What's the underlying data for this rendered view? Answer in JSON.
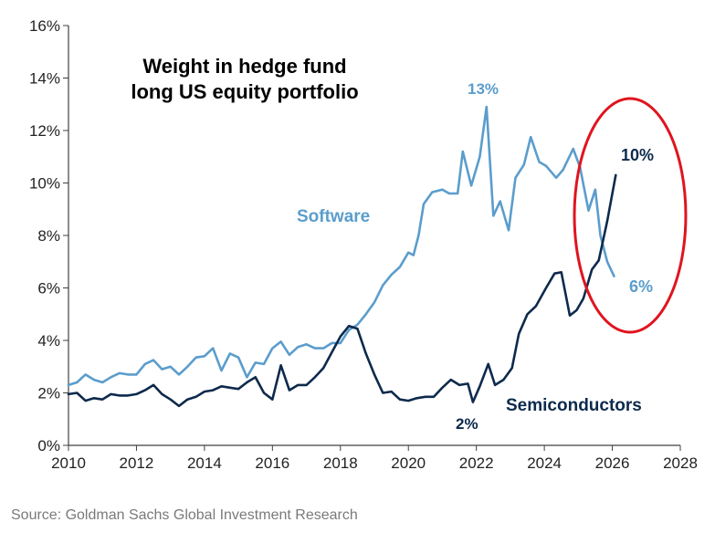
{
  "chart_data": {
    "type": "line",
    "title_lines": [
      "Weight in hedge fund",
      "long US equity portfolio"
    ],
    "xlim": [
      2010,
      2028
    ],
    "ylim": [
      0,
      16
    ],
    "x_ticks": [
      2010,
      2012,
      2014,
      2016,
      2018,
      2020,
      2022,
      2024,
      2026,
      2028
    ],
    "y_ticks": [
      0,
      2,
      4,
      6,
      8,
      10,
      12,
      14,
      16
    ],
    "y_tick_labels": [
      "0%",
      "2%",
      "4%",
      "6%",
      "8%",
      "10%",
      "12%",
      "14%",
      "16%"
    ],
    "grid": false,
    "colors": {
      "software": "#5b9dcc",
      "semiconductors": "#0d2a4c",
      "annotation_ellipse": "#e0141e",
      "axis": "#404040"
    },
    "series": [
      {
        "name": "Software",
        "key": "software",
        "points": [
          [
            2010.0,
            2.3
          ],
          [
            2010.25,
            2.4
          ],
          [
            2010.5,
            2.7
          ],
          [
            2010.75,
            2.5
          ],
          [
            2011.0,
            2.4
          ],
          [
            2011.25,
            2.6
          ],
          [
            2011.5,
            2.75
          ],
          [
            2011.75,
            2.7
          ],
          [
            2012.0,
            2.7
          ],
          [
            2012.25,
            3.1
          ],
          [
            2012.5,
            3.25
          ],
          [
            2012.75,
            2.9
          ],
          [
            2013.0,
            3.0
          ],
          [
            2013.25,
            2.7
          ],
          [
            2013.5,
            3.0
          ],
          [
            2013.75,
            3.35
          ],
          [
            2014.0,
            3.4
          ],
          [
            2014.25,
            3.7
          ],
          [
            2014.5,
            2.85
          ],
          [
            2014.75,
            3.5
          ],
          [
            2015.0,
            3.35
          ],
          [
            2015.25,
            2.6
          ],
          [
            2015.5,
            3.15
          ],
          [
            2015.75,
            3.1
          ],
          [
            2016.0,
            3.7
          ],
          [
            2016.25,
            3.95
          ],
          [
            2016.5,
            3.45
          ],
          [
            2016.75,
            3.75
          ],
          [
            2017.0,
            3.85
          ],
          [
            2017.25,
            3.7
          ],
          [
            2017.5,
            3.7
          ],
          [
            2017.75,
            3.9
          ],
          [
            2018.0,
            3.9
          ],
          [
            2018.25,
            4.4
          ],
          [
            2018.5,
            4.6
          ],
          [
            2018.75,
            5.0
          ],
          [
            2019.0,
            5.45
          ],
          [
            2019.25,
            6.1
          ],
          [
            2019.5,
            6.5
          ],
          [
            2019.75,
            6.8
          ],
          [
            2020.0,
            7.35
          ],
          [
            2020.15,
            7.25
          ],
          [
            2020.3,
            8.0
          ],
          [
            2020.45,
            9.2
          ],
          [
            2020.7,
            9.65
          ],
          [
            2021.0,
            9.75
          ],
          [
            2021.2,
            9.6
          ],
          [
            2021.45,
            9.6
          ],
          [
            2021.6,
            11.2
          ],
          [
            2021.85,
            9.9
          ],
          [
            2022.1,
            11.0
          ],
          [
            2022.3,
            12.9
          ],
          [
            2022.5,
            8.75
          ],
          [
            2022.7,
            9.3
          ],
          [
            2022.95,
            8.2
          ],
          [
            2023.15,
            10.2
          ],
          [
            2023.4,
            10.7
          ],
          [
            2023.6,
            11.75
          ],
          [
            2023.85,
            10.8
          ],
          [
            2024.05,
            10.65
          ],
          [
            2024.35,
            10.2
          ],
          [
            2024.55,
            10.5
          ],
          [
            2024.85,
            11.3
          ],
          [
            2025.05,
            10.6
          ],
          [
            2025.3,
            8.95
          ],
          [
            2025.5,
            9.75
          ],
          [
            2025.65,
            8.0
          ],
          [
            2025.85,
            7.0
          ],
          [
            2026.05,
            6.45
          ]
        ]
      },
      {
        "name": "Semiconductors",
        "key": "semiconductors",
        "points": [
          [
            2010.0,
            1.95
          ],
          [
            2010.25,
            2.0
          ],
          [
            2010.5,
            1.7
          ],
          [
            2010.75,
            1.8
          ],
          [
            2011.0,
            1.75
          ],
          [
            2011.25,
            1.95
          ],
          [
            2011.5,
            1.9
          ],
          [
            2011.75,
            1.9
          ],
          [
            2012.0,
            1.95
          ],
          [
            2012.25,
            2.1
          ],
          [
            2012.5,
            2.3
          ],
          [
            2012.75,
            1.95
          ],
          [
            2013.0,
            1.75
          ],
          [
            2013.25,
            1.5
          ],
          [
            2013.5,
            1.75
          ],
          [
            2013.75,
            1.85
          ],
          [
            2014.0,
            2.05
          ],
          [
            2014.25,
            2.1
          ],
          [
            2014.5,
            2.25
          ],
          [
            2014.75,
            2.2
          ],
          [
            2015.0,
            2.15
          ],
          [
            2015.25,
            2.4
          ],
          [
            2015.5,
            2.6
          ],
          [
            2015.75,
            2.0
          ],
          [
            2016.0,
            1.75
          ],
          [
            2016.25,
            3.05
          ],
          [
            2016.5,
            2.1
          ],
          [
            2016.75,
            2.3
          ],
          [
            2017.0,
            2.3
          ],
          [
            2017.25,
            2.6
          ],
          [
            2017.5,
            2.95
          ],
          [
            2017.75,
            3.55
          ],
          [
            2018.0,
            4.15
          ],
          [
            2018.25,
            4.55
          ],
          [
            2018.5,
            4.45
          ],
          [
            2018.75,
            3.5
          ],
          [
            2019.0,
            2.7
          ],
          [
            2019.25,
            2.0
          ],
          [
            2019.5,
            2.05
          ],
          [
            2019.75,
            1.75
          ],
          [
            2020.0,
            1.7
          ],
          [
            2020.25,
            1.8
          ],
          [
            2020.5,
            1.85
          ],
          [
            2020.75,
            1.85
          ],
          [
            2021.0,
            2.2
          ],
          [
            2021.25,
            2.5
          ],
          [
            2021.5,
            2.3
          ],
          [
            2021.75,
            2.35
          ],
          [
            2021.9,
            1.65
          ],
          [
            2022.1,
            2.25
          ],
          [
            2022.35,
            3.1
          ],
          [
            2022.55,
            2.3
          ],
          [
            2022.8,
            2.5
          ],
          [
            2023.05,
            2.95
          ],
          [
            2023.25,
            4.25
          ],
          [
            2023.5,
            5.0
          ],
          [
            2023.75,
            5.3
          ],
          [
            2024.05,
            6.0
          ],
          [
            2024.3,
            6.55
          ],
          [
            2024.5,
            6.6
          ],
          [
            2024.75,
            4.95
          ],
          [
            2024.95,
            5.15
          ],
          [
            2025.15,
            5.6
          ],
          [
            2025.4,
            6.7
          ],
          [
            2025.6,
            7.05
          ],
          [
            2025.85,
            8.55
          ],
          [
            2026.1,
            10.3
          ]
        ]
      }
    ],
    "annotations": {
      "software_label": "Software",
      "semiconductors_label": "Semiconductors",
      "software_peak": "13%",
      "software_end": "6%",
      "semis_low": "2%",
      "semis_end": "10%"
    },
    "source": "Source: Goldman Sachs Global Investment Research"
  }
}
